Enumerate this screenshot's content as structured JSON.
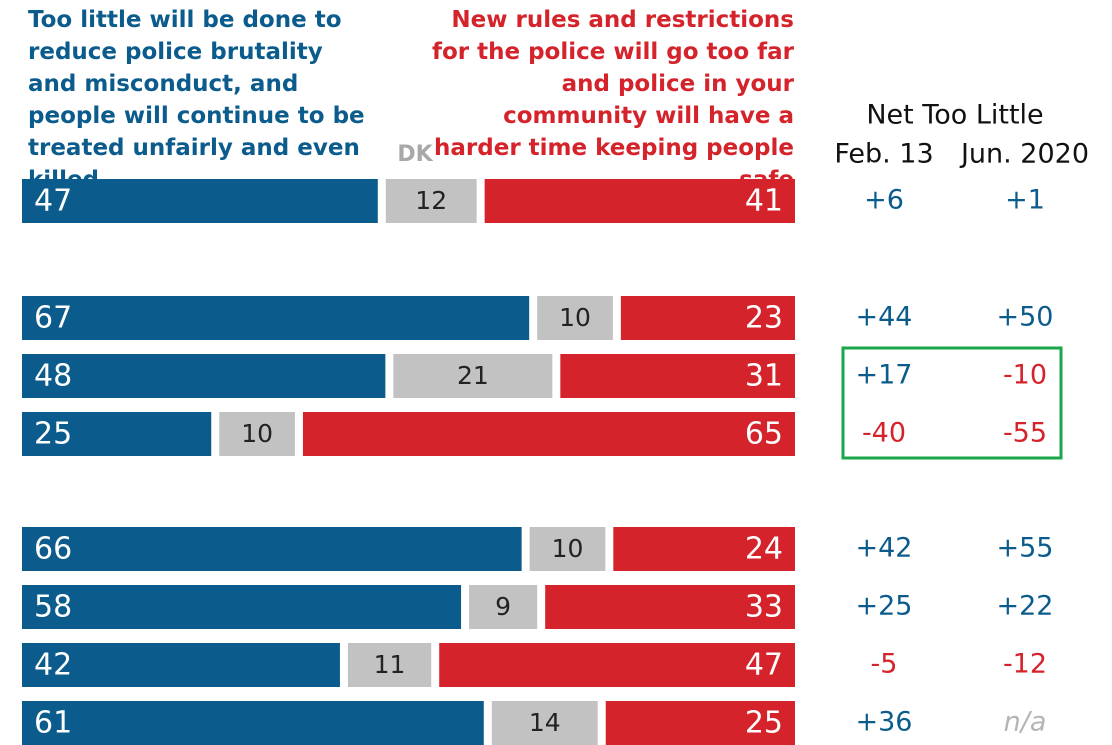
{
  "chart_data": {
    "type": "bar",
    "orientation": "horizontal",
    "stacked": true,
    "categories": [
      null,
      null,
      null,
      null,
      null,
      null,
      null,
      null
    ],
    "xlim": [
      0,
      100
    ],
    "series": [
      {
        "name": "Too little will be done to reduce police brutality and misconduct, and people will continue to be treated unfairly and even killed",
        "color": "#0b5c8c",
        "values": [
          47,
          67,
          48,
          25,
          66,
          58,
          42,
          61
        ]
      },
      {
        "name": "DK",
        "color": "#c2c2c2",
        "values": [
          12,
          10,
          21,
          10,
          10,
          9,
          11,
          14
        ]
      },
      {
        "name": "New rules and restrictions for the police will go too far and police in your community will have a harder time keeping people safe",
        "color": "#d4232b",
        "values": [
          41,
          23,
          31,
          65,
          24,
          33,
          47,
          25
        ]
      }
    ],
    "net": {
      "title": "Net Too Little",
      "positive_color": "#0b5c8c",
      "negative_color": "#d4232b",
      "missing_color": "#b5b5b5",
      "columns": [
        {
          "name": "Feb. 13",
          "values": [
            6,
            44,
            17,
            -40,
            42,
            25,
            -5,
            36
          ],
          "value_labels": [
            "+6",
            "+44",
            "+17",
            "-40",
            "+42",
            "+25",
            "-5",
            "+36"
          ]
        },
        {
          "name": "Jun. 2020",
          "values": [
            1,
            50,
            -10,
            -55,
            55,
            22,
            -12,
            null
          ],
          "value_labels": [
            "+1",
            "+50",
            "-10",
            "-55",
            "+55",
            "+22",
            "-12",
            "n/a"
          ]
        }
      ]
    }
  }
}
